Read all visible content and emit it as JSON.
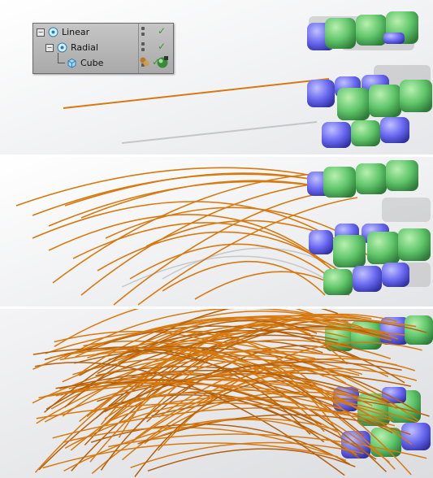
{
  "object_manager": {
    "rows": [
      {
        "label": "Linear",
        "icon": "cloner-icon",
        "enabled": true
      },
      {
        "label": "Radial",
        "icon": "cloner-icon",
        "enabled": true
      },
      {
        "label": "Cube",
        "icon": "cube-icon",
        "enabled": true
      }
    ],
    "tags": [
      "material-tag-icon",
      "phong-tag-icon"
    ]
  },
  "colors": {
    "cube_green": "#5fc56a",
    "cube_blue": "#6868f0",
    "strand_orange": "#d67a10",
    "background": "#f2f2f4",
    "panel_ui": "#b5b5b5"
  }
}
